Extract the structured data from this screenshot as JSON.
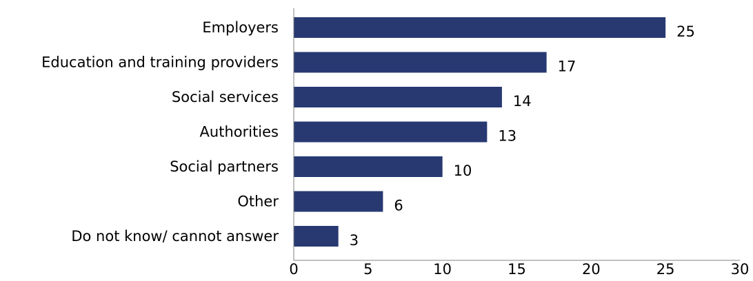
{
  "chart_data": {
    "type": "bar",
    "orientation": "horizontal",
    "title": "",
    "xlabel": "",
    "ylabel": "",
    "categories": [
      "Employers",
      "Education and training providers",
      "Social services",
      "Authorities",
      "Social partners",
      "Other",
      "Do not know/ cannot answer"
    ],
    "values": [
      25,
      17,
      14,
      13,
      10,
      6,
      3
    ],
    "xlim": [
      0,
      30
    ],
    "xticks": [
      0,
      5,
      10,
      15,
      20,
      25,
      30
    ],
    "grid": false,
    "legend": "none",
    "data_labels": true,
    "bar_color": "#283972",
    "axis_color": "#808080"
  }
}
